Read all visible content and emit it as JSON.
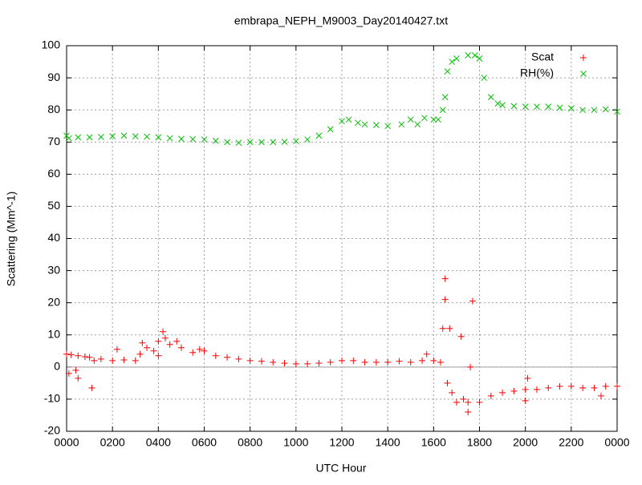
{
  "chart_data": {
    "type": "scatter",
    "title": "embrapa_NEPH_M9003_Day20140427.txt",
    "x_label": "UTC Hour",
    "y_label": "Scattering (Mm^-1)",
    "xlim": [
      0,
      24
    ],
    "ylim": [
      -20,
      100
    ],
    "xticks": [
      {
        "value": 0,
        "label": "0000"
      },
      {
        "value": 2,
        "label": "0200"
      },
      {
        "value": 4,
        "label": "0400"
      },
      {
        "value": 6,
        "label": "0600"
      },
      {
        "value": 8,
        "label": "0800"
      },
      {
        "value": 10,
        "label": "1000"
      },
      {
        "value": 12,
        "label": "1200"
      },
      {
        "value": 14,
        "label": "1400"
      },
      {
        "value": 16,
        "label": "1600"
      },
      {
        "value": 18,
        "label": "1800"
      },
      {
        "value": 20,
        "label": "2000"
      },
      {
        "value": 22,
        "label": "2200"
      },
      {
        "value": 24,
        "label": "0000"
      }
    ],
    "yticks": [
      -20,
      -10,
      0,
      10,
      20,
      30,
      40,
      50,
      60,
      70,
      80,
      90,
      100
    ],
    "grid": true,
    "zero_line": true,
    "legend": "top-right",
    "series": [
      {
        "name": "Scat",
        "color": "#ff0000",
        "marker": "plus",
        "x": [
          0,
          0.1,
          0.2,
          0.4,
          0.5,
          0.5,
          0.8,
          1,
          1.1,
          1.2,
          1.5,
          2,
          2.2,
          2.5,
          3,
          3.2,
          3.3,
          3.5,
          3.8,
          4,
          4,
          4.2,
          4.3,
          4.5,
          4.8,
          5,
          5.5,
          5.8,
          6,
          6.5,
          7,
          7.5,
          8,
          8.5,
          9,
          9.5,
          10,
          10.5,
          11,
          11.5,
          12,
          12.5,
          13,
          13.5,
          14,
          14.5,
          15,
          15.5,
          15.7,
          16,
          16.3,
          16.4,
          16.5,
          16.5,
          16.6,
          16.7,
          16.8,
          17,
          17.2,
          17.3,
          17.5,
          17.5,
          17.6,
          17.7,
          18,
          18.5,
          19,
          19.5,
          20,
          20,
          20.1,
          20.5,
          21,
          21.5,
          22,
          22.5,
          23,
          23.3,
          23.5,
          24
        ],
        "values": [
          4,
          -2,
          3.8,
          -1,
          3.5,
          -3.5,
          3.2,
          3,
          -6.5,
          2,
          2.5,
          2,
          5.5,
          2.2,
          2,
          4,
          7.5,
          6,
          5,
          3.5,
          8,
          11,
          9,
          7,
          8,
          6,
          4.5,
          5.5,
          5,
          3.5,
          3,
          2.5,
          2,
          1.8,
          1.5,
          1.2,
          1,
          1,
          1.2,
          1.5,
          2,
          2,
          1.5,
          1.5,
          1.5,
          1.8,
          1.5,
          2,
          4,
          2,
          1.5,
          12,
          27.5,
          21,
          -5,
          12,
          -8,
          -11,
          9.5,
          -10,
          -11,
          -14,
          0,
          20.5,
          -11,
          -9,
          -8,
          -7.5,
          -7,
          -10.5,
          -3.5,
          -7,
          -6.5,
          -6,
          -6,
          -6.5,
          -6.5,
          -9,
          -6,
          -6
        ]
      },
      {
        "name": "RH(%)",
        "color": "#00c000",
        "marker": "cross",
        "x": [
          0,
          0.1,
          0.5,
          1,
          1.5,
          2,
          2.5,
          3,
          3.5,
          4,
          4.5,
          5,
          5.5,
          6,
          6.5,
          7,
          7.5,
          8,
          8.5,
          9,
          9.5,
          10,
          10.5,
          11,
          11.5,
          12,
          12.3,
          12.7,
          13,
          13.5,
          14,
          14.6,
          15,
          15.3,
          15.6,
          16,
          16.2,
          16.4,
          16.5,
          16.6,
          16.8,
          17,
          17.5,
          17.8,
          18,
          18.2,
          18.5,
          18.8,
          19,
          19.5,
          20,
          20.5,
          21,
          21.5,
          22,
          22.5,
          23,
          23.5,
          24
        ],
        "values": [
          72,
          71.2,
          71.5,
          71.5,
          71.6,
          71.8,
          72,
          71.8,
          71.7,
          71.5,
          71.2,
          71,
          70.9,
          70.8,
          70.4,
          70,
          69.8,
          70,
          70,
          70,
          70.1,
          70.3,
          70.8,
          72,
          74,
          76.5,
          77,
          76,
          75.5,
          75.3,
          75,
          75.5,
          77,
          75.5,
          77.5,
          77,
          77,
          80,
          84,
          92,
          95,
          96,
          97,
          97,
          96,
          90,
          84,
          82,
          81.5,
          81.2,
          81,
          81,
          81,
          80.7,
          80.5,
          80,
          80,
          80.2,
          79.5
        ]
      }
    ]
  }
}
